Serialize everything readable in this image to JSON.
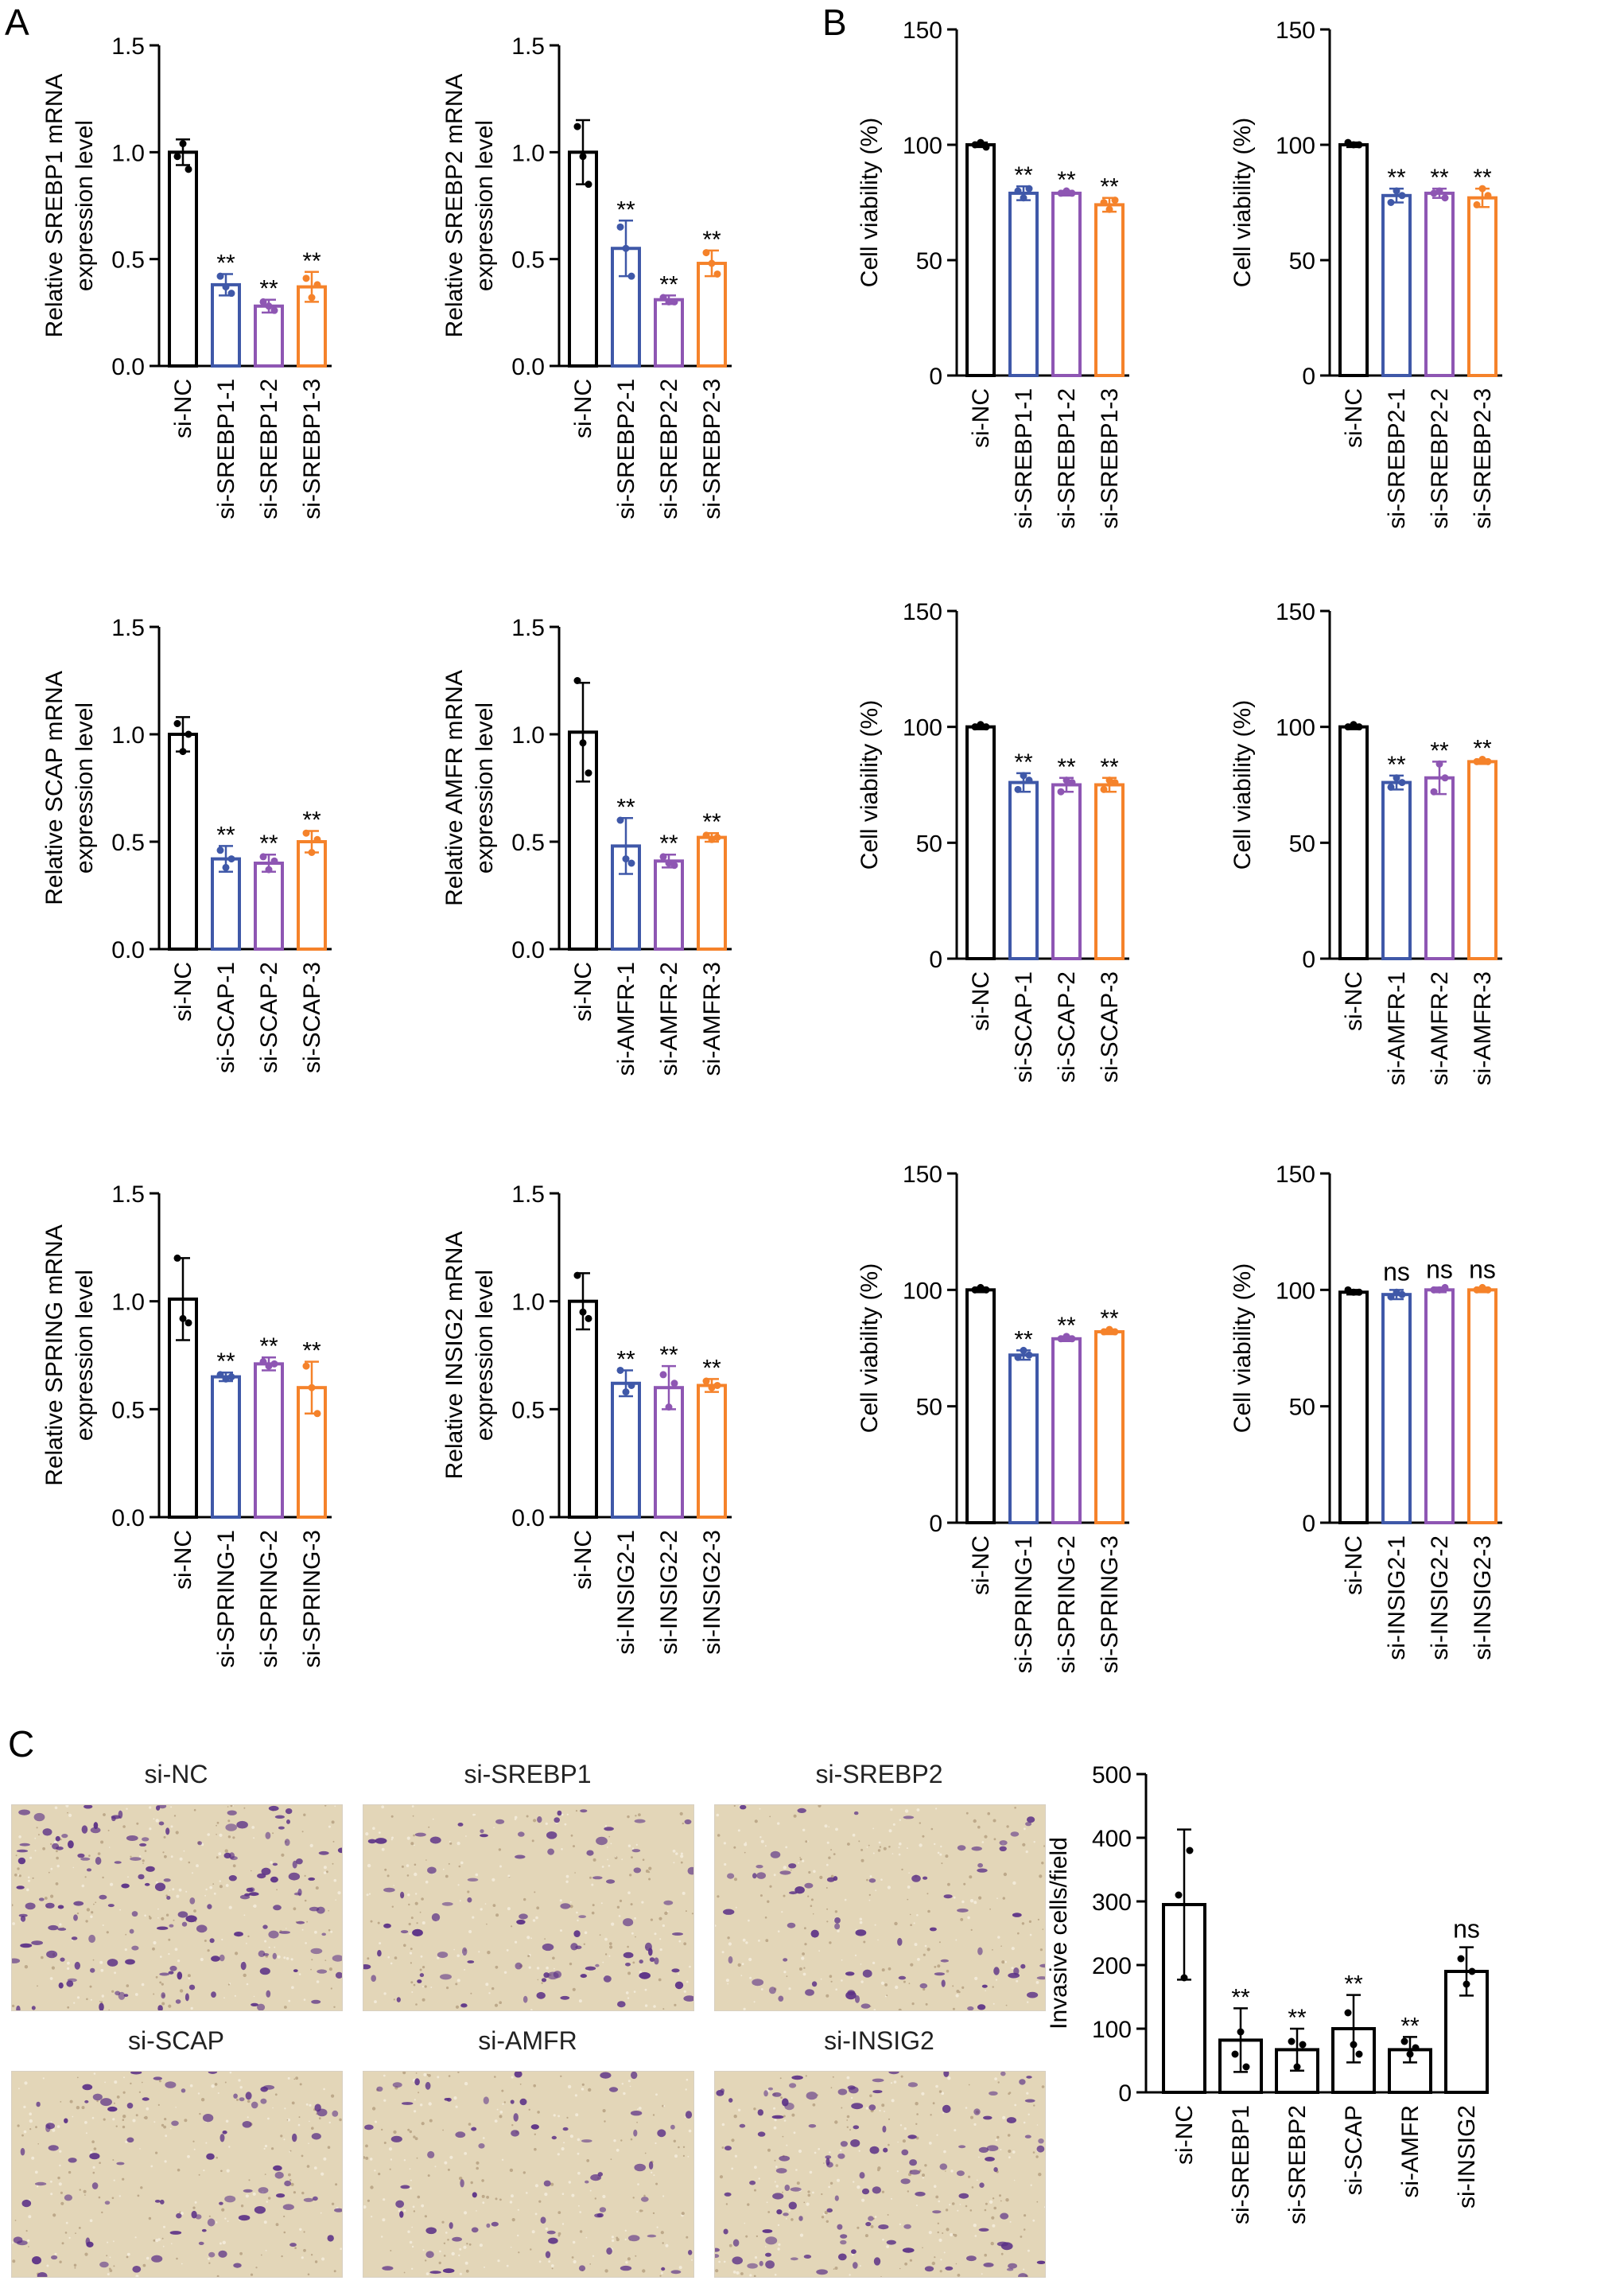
{
  "panel_letters": [
    "A",
    "B",
    "C"
  ],
  "colors": {
    "nc": "#000000",
    "k1": "#3f58a8",
    "k2": "#8e56b3",
    "k3": "#f5822a",
    "photo_bg": "#e3d6b8",
    "cell": "#5a2f86"
  },
  "chart_data": [
    {
      "id": "a1",
      "type": "bar",
      "panel": "A",
      "ylabel": [
        "Relative SREBP1 mRNA",
        "expression level"
      ],
      "yticks": [
        "0.0",
        "0.5",
        "1.0",
        "1.5"
      ],
      "ylim": [
        0,
        1.5
      ],
      "categories": [
        "si-NC",
        "si-SREBP1-1",
        "si-SREBP1-2",
        "si-SREBP1-3"
      ],
      "values": [
        1.0,
        0.38,
        0.28,
        0.37
      ],
      "errors": [
        0.06,
        0.05,
        0.03,
        0.07
      ],
      "points": [
        [
          0.98,
          1.04,
          0.92
        ],
        [
          0.42,
          0.37,
          0.34
        ],
        [
          0.3,
          0.28,
          0.26
        ],
        [
          0.41,
          0.32,
          0.38
        ]
      ],
      "annotations": [
        "",
        "**",
        "**",
        "**"
      ]
    },
    {
      "id": "a2",
      "type": "bar",
      "panel": "A",
      "ylabel": [
        "Relative SREBP2 mRNA",
        "expression level"
      ],
      "yticks": [
        "0.0",
        "0.5",
        "1.0",
        "1.5"
      ],
      "ylim": [
        0,
        1.5
      ],
      "categories": [
        "si-NC",
        "si-SREBP2-1",
        "si-SREBP2-2",
        "si-SREBP2-3"
      ],
      "values": [
        1.0,
        0.55,
        0.31,
        0.48
      ],
      "errors": [
        0.15,
        0.13,
        0.02,
        0.06
      ],
      "points": [
        [
          1.12,
          0.98,
          0.85
        ],
        [
          0.65,
          0.55,
          0.42
        ],
        [
          0.32,
          0.3,
          0.3
        ],
        [
          0.53,
          0.48,
          0.43
        ]
      ],
      "annotations": [
        "",
        "**",
        "**",
        "**"
      ]
    },
    {
      "id": "a3",
      "type": "bar",
      "panel": "A",
      "ylabel": [
        "Relative SCAP mRNA",
        "expression level"
      ],
      "yticks": [
        "0.0",
        "0.5",
        "1.0",
        "1.5"
      ],
      "ylim": [
        0,
        1.5
      ],
      "categories": [
        "si-NC",
        "si-SCAP-1",
        "si-SCAP-2",
        "si-SCAP-3"
      ],
      "values": [
        1.0,
        0.42,
        0.4,
        0.5
      ],
      "errors": [
        0.08,
        0.06,
        0.04,
        0.05
      ],
      "points": [
        [
          1.05,
          0.92,
          1.0
        ],
        [
          0.46,
          0.38,
          0.42
        ],
        [
          0.43,
          0.37,
          0.41
        ],
        [
          0.54,
          0.45,
          0.51
        ]
      ],
      "annotations": [
        "",
        "**",
        "**",
        "**"
      ]
    },
    {
      "id": "a4",
      "type": "bar",
      "panel": "A",
      "ylabel": [
        "Relative AMFR mRNA",
        "expression level"
      ],
      "yticks": [
        "0.0",
        "0.5",
        "1.0",
        "1.5"
      ],
      "ylim": [
        0,
        1.5
      ],
      "categories": [
        "si-NC",
        "si-AMFR-1",
        "si-AMFR-2",
        "si-AMFR-3"
      ],
      "values": [
        1.01,
        0.48,
        0.41,
        0.52
      ],
      "errors": [
        0.23,
        0.13,
        0.03,
        0.02
      ],
      "points": [
        [
          1.25,
          0.96,
          0.82
        ],
        [
          0.6,
          0.42,
          0.4
        ],
        [
          0.43,
          0.4,
          0.39
        ],
        [
          0.53,
          0.51,
          0.52
        ]
      ],
      "annotations": [
        "",
        "**",
        "**",
        "**"
      ]
    },
    {
      "id": "a5",
      "type": "bar",
      "panel": "A",
      "ylabel": [
        "Relative SPRING mRNA",
        "expression level"
      ],
      "yticks": [
        "0.0",
        "0.5",
        "1.0",
        "1.5"
      ],
      "ylim": [
        0,
        1.5
      ],
      "categories": [
        "si-NC",
        "si-SPRING-1",
        "si-SPRING-2",
        "si-SPRING-3"
      ],
      "values": [
        1.01,
        0.65,
        0.71,
        0.6
      ],
      "errors": [
        0.19,
        0.02,
        0.03,
        0.12
      ],
      "points": [
        [
          1.2,
          0.92,
          0.9
        ],
        [
          0.66,
          0.64,
          0.65
        ],
        [
          0.72,
          0.7,
          0.71
        ],
        [
          0.7,
          0.6,
          0.48
        ]
      ],
      "annotations": [
        "",
        "**",
        "**",
        "**"
      ]
    },
    {
      "id": "a6",
      "type": "bar",
      "panel": "A",
      "ylabel": [
        "Relative INSIG2 mRNA",
        "expression level"
      ],
      "yticks": [
        "0.0",
        "0.5",
        "1.0",
        "1.5"
      ],
      "ylim": [
        0,
        1.5
      ],
      "categories": [
        "si-NC",
        "si-INSIG2-1",
        "si-INSIG2-2",
        "si-INSIG2-3"
      ],
      "values": [
        1.0,
        0.62,
        0.6,
        0.61
      ],
      "errors": [
        0.13,
        0.06,
        0.1,
        0.03
      ],
      "points": [
        [
          1.12,
          0.95,
          0.92
        ],
        [
          0.68,
          0.58,
          0.61
        ],
        [
          0.66,
          0.51,
          0.62
        ],
        [
          0.63,
          0.6,
          0.61
        ]
      ],
      "annotations": [
        "",
        "**",
        "**",
        "**"
      ]
    },
    {
      "id": "b1",
      "type": "bar",
      "panel": "B",
      "ylabel": [
        "Cell viability (%)"
      ],
      "yticks": [
        "0",
        "50",
        "100",
        "150"
      ],
      "ylim": [
        0,
        150
      ],
      "categories": [
        "si-NC",
        "si-SREBP1-1",
        "si-SREBP1-2",
        "si-SREBP1-3"
      ],
      "values": [
        100,
        79,
        79,
        74
      ],
      "errors": [
        1,
        3,
        1,
        3
      ],
      "points": [
        [
          100,
          101,
          99
        ],
        [
          80,
          77,
          81
        ],
        [
          79,
          80,
          79
        ],
        [
          75,
          72,
          76
        ]
      ],
      "annotations": [
        "",
        "**",
        "**",
        "**"
      ]
    },
    {
      "id": "b2",
      "type": "bar",
      "panel": "B",
      "ylabel": [
        "Cell viability (%)"
      ],
      "yticks": [
        "0",
        "50",
        "100",
        "150"
      ],
      "ylim": [
        0,
        150
      ],
      "categories": [
        "si-NC",
        "si-SREBP2-1",
        "si-SREBP2-2",
        "si-SREBP2-3"
      ],
      "values": [
        100,
        78,
        79,
        77
      ],
      "errors": [
        1,
        3,
        2,
        4
      ],
      "points": [
        [
          101,
          100,
          100
        ],
        [
          75,
          80,
          78
        ],
        [
          79,
          80,
          77
        ],
        [
          74,
          81,
          78
        ]
      ],
      "annotations": [
        "",
        "**",
        "**",
        "**"
      ]
    },
    {
      "id": "b3",
      "type": "bar",
      "panel": "B",
      "ylabel": [
        "Cell viability (%)"
      ],
      "yticks": [
        "0",
        "50",
        "100",
        "150"
      ],
      "ylim": [
        0,
        150
      ],
      "categories": [
        "si-NC",
        "si-SCAP-1",
        "si-SCAP-2",
        "si-SCAP-3"
      ],
      "values": [
        100,
        76,
        75,
        75
      ],
      "errors": [
        1,
        4,
        3,
        3
      ],
      "points": [
        [
          100,
          101,
          100
        ],
        [
          73,
          79,
          77
        ],
        [
          72,
          77,
          76
        ],
        [
          73,
          77,
          76
        ]
      ],
      "annotations": [
        "",
        "**",
        "**",
        "**"
      ]
    },
    {
      "id": "b4",
      "type": "bar",
      "panel": "B",
      "ylabel": [
        "Cell viability (%)"
      ],
      "yticks": [
        "0",
        "50",
        "100",
        "150"
      ],
      "ylim": [
        0,
        150
      ],
      "categories": [
        "si-NC",
        "si-AMFR-1",
        "si-AMFR-2",
        "si-AMFR-3"
      ],
      "values": [
        100,
        76,
        78,
        85
      ],
      "errors": [
        1,
        3,
        7,
        1
      ],
      "points": [
        [
          100,
          101,
          100
        ],
        [
          74,
          78,
          76
        ],
        [
          72,
          84,
          78
        ],
        [
          85,
          86,
          85
        ]
      ],
      "annotations": [
        "",
        "**",
        "**",
        "**"
      ]
    },
    {
      "id": "b5",
      "type": "bar",
      "panel": "B",
      "ylabel": [
        "Cell viability (%)"
      ],
      "yticks": [
        "0",
        "50",
        "100",
        "150"
      ],
      "ylim": [
        0,
        150
      ],
      "categories": [
        "si-NC",
        "si-SPRING-1",
        "si-SPRING-2",
        "si-SPRING-3"
      ],
      "values": [
        100,
        72,
        79,
        82
      ],
      "errors": [
        1,
        2,
        1,
        1
      ],
      "points": [
        [
          100,
          101,
          100
        ],
        [
          71,
          74,
          72
        ],
        [
          79,
          80,
          79
        ],
        [
          82,
          83,
          82
        ]
      ],
      "annotations": [
        "",
        "**",
        "**",
        "**"
      ]
    },
    {
      "id": "b6",
      "type": "bar",
      "panel": "B",
      "ylabel": [
        "Cell viability (%)"
      ],
      "yticks": [
        "0",
        "50",
        "100",
        "150"
      ],
      "ylim": [
        0,
        150
      ],
      "categories": [
        "si-NC",
        "si-INSIG2-1",
        "si-INSIG2-2",
        "si-INSIG2-3"
      ],
      "values": [
        99,
        98,
        100,
        100
      ],
      "errors": [
        1,
        2,
        1,
        1
      ],
      "points": [
        [
          100,
          99,
          99
        ],
        [
          97,
          99,
          98
        ],
        [
          100,
          100,
          101
        ],
        [
          100,
          101,
          100
        ]
      ],
      "annotations": [
        "",
        "ns",
        "ns",
        "ns"
      ]
    },
    {
      "id": "c",
      "type": "bar",
      "panel": "C",
      "ylabel": [
        "Invasive cells/field"
      ],
      "yticks": [
        "0",
        "100",
        "200",
        "300",
        "400",
        "500"
      ],
      "ylim": [
        0,
        500
      ],
      "categories": [
        "si-NC",
        "si-SREBP1",
        "si-SREBP2",
        "si-SCAP",
        "si-AMFR",
        "si-INSIG2"
      ],
      "values": [
        295,
        82,
        67,
        100,
        67,
        190
      ],
      "errors": [
        118,
        50,
        33,
        53,
        20,
        38
      ],
      "points": [
        [
          310,
          180,
          380
        ],
        [
          60,
          95,
          40
        ],
        [
          80,
          40,
          75
        ],
        [
          125,
          75,
          60
        ],
        [
          80,
          60,
          70
        ],
        [
          210,
          170,
          190
        ]
      ],
      "annotations": [
        "",
        "**",
        "**",
        "**",
        "**",
        "ns"
      ]
    }
  ],
  "images": [
    {
      "label": "si-NC",
      "density": 1.0
    },
    {
      "label": "si-SREBP1",
      "density": 0.55
    },
    {
      "label": "si-SREBP2",
      "density": 0.45
    },
    {
      "label": "si-SCAP",
      "density": 0.55
    },
    {
      "label": "si-AMFR",
      "density": 0.45
    },
    {
      "label": "si-INSIG2",
      "density": 0.8
    }
  ]
}
